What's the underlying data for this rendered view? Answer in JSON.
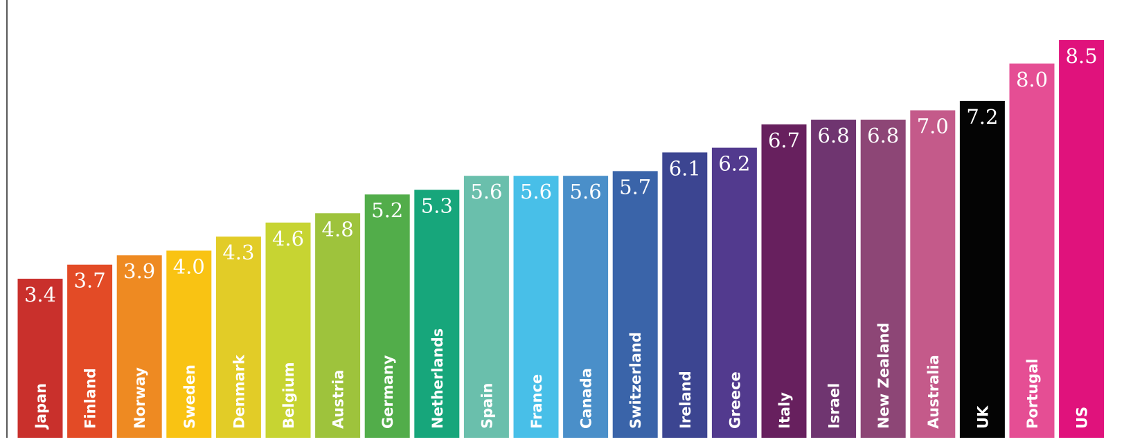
{
  "chart_data": {
    "type": "bar",
    "categories": [
      "Japan",
      "Finland",
      "Norway",
      "Sweden",
      "Denmark",
      "Belgium",
      "Austria",
      "Germany",
      "Netherlands",
      "Spain",
      "France",
      "Canada",
      "Switzerland",
      "Ireland",
      "Greece",
      "Italy",
      "Israel",
      "New Zealand",
      "Australia",
      "UK",
      "Portugal",
      "US"
    ],
    "values": [
      3.4,
      3.7,
      3.9,
      4.0,
      4.3,
      4.6,
      4.8,
      5.2,
      5.3,
      5.6,
      5.6,
      5.6,
      5.7,
      6.1,
      6.2,
      6.7,
      6.8,
      6.8,
      7.0,
      7.2,
      8.0,
      8.5
    ],
    "value_labels": [
      "3.4",
      "3.7",
      "3.9",
      "4.0",
      "4.3",
      "4.6",
      "4.8",
      "5.2",
      "5.3",
      "5.6",
      "5.6",
      "5.6",
      "5.7",
      "6.1",
      "6.2",
      "6.7",
      "6.8",
      "6.8",
      "7.0",
      "7.2",
      "8.0",
      "8.5"
    ],
    "colors": [
      "#c9302c",
      "#e34b26",
      "#ee8a22",
      "#f9c313",
      "#e2cc27",
      "#c7d432",
      "#9ec33c",
      "#52ad4a",
      "#17a67b",
      "#6abfac",
      "#48bfe8",
      "#4a8fc9",
      "#3a64a9",
      "#3c4591",
      "#523a8e",
      "#67205e",
      "#6f3570",
      "#8d4676",
      "#c45a8a",
      "#040404",
      "#e54e94",
      "#e0127c"
    ],
    "title": "",
    "xlabel": "",
    "ylabel": "",
    "ylim": [
      0,
      9
    ],
    "grid": false,
    "legend": "none"
  }
}
